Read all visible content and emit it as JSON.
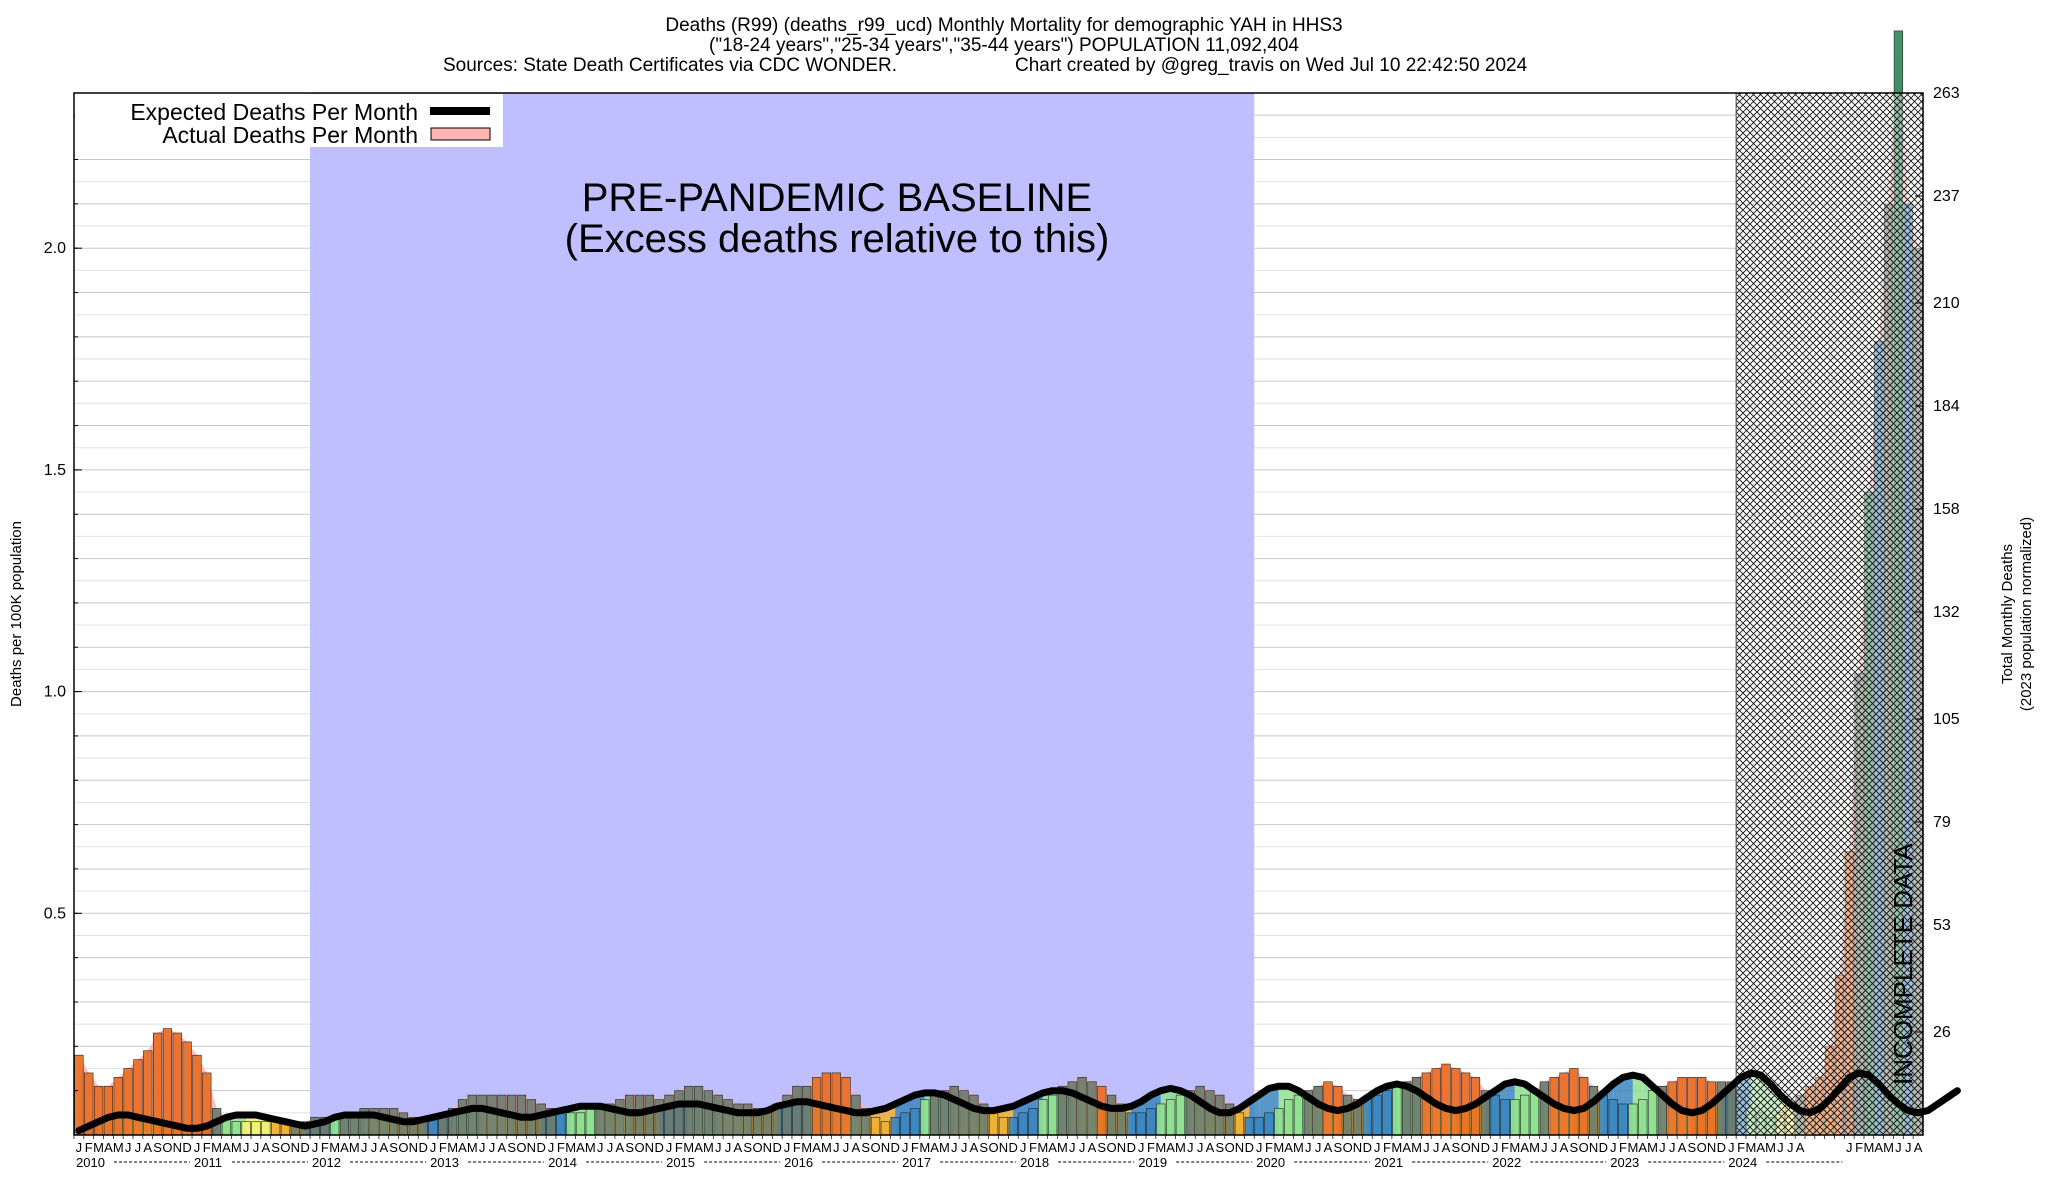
{
  "chart_data": {
    "type": "bar",
    "title_lines": [
      "Deaths (R99) (deaths_r99_ucd) Monthly Mortality for demographic YAH in HHS3",
      "(\"18-24 years\",\"25-34 years\",\"35-44 years\") POPULATION 11,092,404",
      "Sources: State Death Certificates via CDC WONDER.",
      "Chart created by @greg_travis on Wed Jul 10 22:42:50 2024"
    ],
    "ylabel": "Deaths per 100K population",
    "y2label_lines": [
      "Total Monthly Deaths",
      "(2023 population normalized)"
    ],
    "ylim": [
      0,
      2.35
    ],
    "y_ticks": [
      "0.5",
      "1.0",
      "1.5",
      "2.0"
    ],
    "y_tick_values": [
      0.5,
      1.0,
      1.5,
      2.0
    ],
    "y2_ticks": [
      "26",
      "53",
      "79",
      "105",
      "132",
      "158",
      "184",
      "210",
      "237",
      "263"
    ],
    "y2_tick_values": [
      26,
      53,
      79,
      105,
      132,
      158,
      184,
      210,
      237,
      263
    ],
    "y2_max": 263,
    "start_year": 2010,
    "month_letters": [
      "J",
      "F",
      "M",
      "A",
      "M",
      "J",
      "J",
      "A",
      "S",
      "O",
      "N",
      "D"
    ],
    "years": [
      "2010",
      "2011",
      "2012",
      "2013",
      "2014",
      "2015",
      "2016",
      "2017",
      "2018",
      "2019",
      "2020",
      "2021",
      "2022",
      "2023",
      "2024"
    ],
    "last_month_letters": [
      "J",
      "F",
      "M",
      "A",
      "M",
      "J",
      "J",
      "A"
    ],
    "legend": [
      "Expected Deaths Per Month",
      "Actual Deaths Per Month"
    ],
    "baseline_text": [
      "PRE-PANDEMIC BASELINE",
      "(Excess deaths relative to this)"
    ],
    "baseline_range": [
      "2012-01",
      "2019-12"
    ],
    "incomplete_label": "INCOMPLETE DATA",
    "incomplete_from": "2024-02",
    "season_colors": {
      "winter": "#3a86c0",
      "spring": "#8ee08e",
      "summer": "#f0ee78",
      "fall": "#f0b030"
    },
    "excess_color": "#e86c20",
    "deficit_color": "#6a7a6a",
    "series": [
      {
        "name": "Actual Deaths Per Month",
        "values": [
          0.18,
          0.14,
          0.11,
          0.11,
          0.13,
          0.15,
          0.17,
          0.19,
          0.23,
          0.24,
          0.23,
          0.21,
          0.18,
          0.14,
          0.06,
          0.04,
          0.03,
          0.03,
          0.03,
          0.03,
          0.03,
          0.03,
          0.03,
          0.03,
          0.04,
          0.04,
          0.04,
          0.05,
          0.05,
          0.06,
          0.06,
          0.06,
          0.06,
          0.05,
          0.04,
          0.04,
          0.04,
          0.05,
          0.06,
          0.08,
          0.09,
          0.09,
          0.09,
          0.09,
          0.09,
          0.09,
          0.08,
          0.07,
          0.06,
          0.05,
          0.05,
          0.05,
          0.06,
          0.07,
          0.07,
          0.08,
          0.09,
          0.09,
          0.09,
          0.08,
          0.09,
          0.1,
          0.11,
          0.11,
          0.1,
          0.09,
          0.08,
          0.07,
          0.07,
          0.06,
          0.06,
          0.07,
          0.09,
          0.11,
          0.11,
          0.13,
          0.14,
          0.14,
          0.13,
          0.09,
          0.06,
          0.04,
          0.03,
          0.04,
          0.05,
          0.06,
          0.08,
          0.1,
          0.1,
          0.11,
          0.1,
          0.09,
          0.07,
          0.05,
          0.04,
          0.04,
          0.05,
          0.06,
          0.08,
          0.09,
          0.11,
          0.12,
          0.13,
          0.12,
          0.11,
          0.09,
          0.07,
          0.05,
          0.05,
          0.06,
          0.07,
          0.08,
          0.09,
          0.1,
          0.11,
          0.1,
          0.09,
          0.07,
          0.05,
          0.04,
          0.04,
          0.05,
          0.06,
          0.08,
          0.09,
          0.1,
          0.11,
          0.12,
          0.11,
          0.09,
          0.08,
          0.08,
          0.09,
          0.1,
          0.11,
          0.12,
          0.13,
          0.14,
          0.15,
          0.16,
          0.15,
          0.14,
          0.13,
          0.1,
          0.09,
          0.08,
          0.08,
          0.09,
          0.1,
          0.12,
          0.13,
          0.14,
          0.15,
          0.13,
          0.11,
          0.09,
          0.08,
          0.07,
          0.07,
          0.08,
          0.1,
          0.11,
          0.12,
          0.13,
          0.13,
          0.13,
          0.12,
          0.12,
          0.12,
          0.1,
          0.06,
          0.05,
          0.04,
          0.05,
          0.07,
          0.09,
          0.11,
          0.13,
          0.2,
          0.36,
          0.64,
          1.04,
          1.45,
          1.79,
          2.1,
          2.49,
          2.1,
          2.0
        ]
      },
      {
        "name": "Expected Deaths Per Month",
        "values": [
          0.01,
          0.02,
          0.03,
          0.04,
          0.045,
          0.045,
          0.04,
          0.035,
          0.03,
          0.025,
          0.02,
          0.015,
          0.015,
          0.02,
          0.03,
          0.04,
          0.045,
          0.045,
          0.045,
          0.04,
          0.035,
          0.03,
          0.025,
          0.02,
          0.025,
          0.03,
          0.04,
          0.045,
          0.045,
          0.045,
          0.045,
          0.04,
          0.035,
          0.03,
          0.03,
          0.035,
          0.04,
          0.045,
          0.05,
          0.055,
          0.06,
          0.06,
          0.055,
          0.05,
          0.045,
          0.04,
          0.04,
          0.045,
          0.05,
          0.055,
          0.06,
          0.065,
          0.065,
          0.065,
          0.06,
          0.055,
          0.05,
          0.05,
          0.055,
          0.06,
          0.065,
          0.07,
          0.07,
          0.07,
          0.065,
          0.06,
          0.055,
          0.05,
          0.05,
          0.05,
          0.055,
          0.065,
          0.07,
          0.075,
          0.075,
          0.07,
          0.065,
          0.06,
          0.055,
          0.05,
          0.05,
          0.055,
          0.06,
          0.07,
          0.08,
          0.09,
          0.095,
          0.095,
          0.09,
          0.08,
          0.07,
          0.06,
          0.055,
          0.055,
          0.06,
          0.065,
          0.075,
          0.085,
          0.095,
          0.1,
          0.1,
          0.095,
          0.085,
          0.075,
          0.065,
          0.06,
          0.06,
          0.065,
          0.075,
          0.09,
          0.1,
          0.105,
          0.1,
          0.09,
          0.075,
          0.06,
          0.05,
          0.05,
          0.06,
          0.075,
          0.09,
          0.105,
          0.11,
          0.11,
          0.1,
          0.085,
          0.07,
          0.06,
          0.055,
          0.06,
          0.07,
          0.085,
          0.1,
          0.11,
          0.115,
          0.11,
          0.1,
          0.085,
          0.07,
          0.06,
          0.055,
          0.06,
          0.07,
          0.085,
          0.1,
          0.115,
          0.12,
          0.115,
          0.1,
          0.085,
          0.07,
          0.06,
          0.055,
          0.06,
          0.075,
          0.095,
          0.115,
          0.13,
          0.135,
          0.13,
          0.11,
          0.09,
          0.07,
          0.055,
          0.05,
          0.055,
          0.07,
          0.09,
          0.11,
          0.13,
          0.14,
          0.135,
          0.115,
          0.09,
          0.07,
          0.055,
          0.05,
          0.06,
          0.08,
          0.105,
          0.13,
          0.14,
          0.135,
          0.115,
          0.09,
          0.07,
          0.055,
          0.05,
          0.055,
          0.07,
          0.085,
          0.1
        ]
      }
    ]
  }
}
